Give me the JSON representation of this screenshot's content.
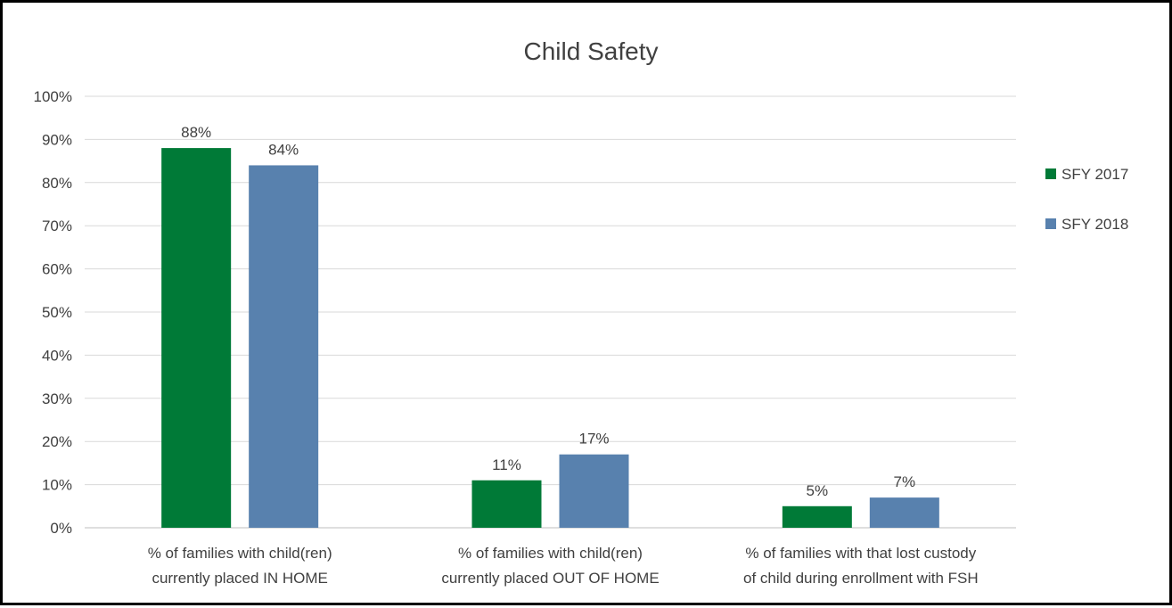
{
  "chart_data": {
    "type": "bar",
    "title": "Child Safety",
    "categories": [
      [
        "% of families with child(ren)",
        "currently placed IN HOME"
      ],
      [
        "% of families with child(ren)",
        "currently placed OUT OF HOME"
      ],
      [
        "% of families with that lost custody",
        "of child during enrollment with FSH"
      ]
    ],
    "series": [
      {
        "name": "SFY 2017",
        "color": "#007A37",
        "values": [
          88,
          11,
          5
        ],
        "labels": [
          "88%",
          "11%",
          "5%"
        ]
      },
      {
        "name": "SFY 2018",
        "color": "#5881AE",
        "values": [
          84,
          17,
          7
        ],
        "labels": [
          "84%",
          "17%",
          "7%"
        ]
      }
    ],
    "ylim": [
      0,
      100
    ],
    "yticks": [
      "0%",
      "10%",
      "20%",
      "30%",
      "40%",
      "50%",
      "60%",
      "70%",
      "80%",
      "90%",
      "100%"
    ],
    "grid": true,
    "legend": "right"
  }
}
